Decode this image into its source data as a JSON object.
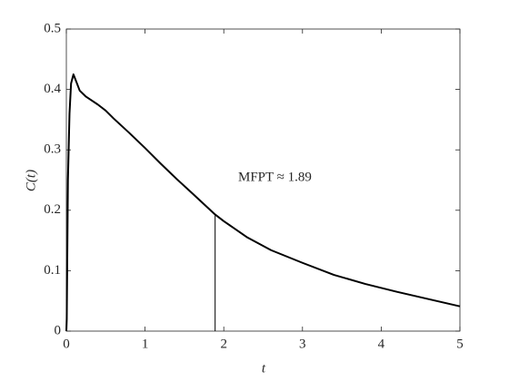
{
  "chart_data": {
    "type": "line",
    "x_label": "t",
    "y_label": "C(t)",
    "annotation": "MFPT ≈ 1.89",
    "x": [
      0,
      0.005,
      0.02,
      0.04,
      0.06,
      0.09,
      0.12,
      0.17,
      0.25,
      0.4,
      0.5,
      0.6,
      0.8,
      1.0,
      1.2,
      1.4,
      1.6,
      1.89,
      2.0,
      2.3,
      2.6,
      3.0,
      3.4,
      3.8,
      4.2,
      4.6,
      5.0
    ],
    "series": [
      {
        "color": "#000000",
        "values": [
          0,
          0.02,
          0.25,
          0.36,
          0.41,
          0.425,
          0.415,
          0.398,
          0.388,
          0.375,
          0.365,
          0.352,
          0.328,
          0.303,
          0.277,
          0.252,
          0.228,
          0.193,
          0.182,
          0.155,
          0.134,
          0.113,
          0.093,
          0.078,
          0.065,
          0.053,
          0.041
        ]
      }
    ],
    "vline": {
      "x": 1.89,
      "y": 0.193
    },
    "xlim": [
      0,
      5
    ],
    "xticks": [
      0,
      1,
      2,
      3,
      4,
      5
    ],
    "ylim": [
      0,
      0.5
    ],
    "yticks": [
      0,
      0.1,
      0.2,
      0.3,
      0.4,
      0.5
    ],
    "grid": false
  }
}
